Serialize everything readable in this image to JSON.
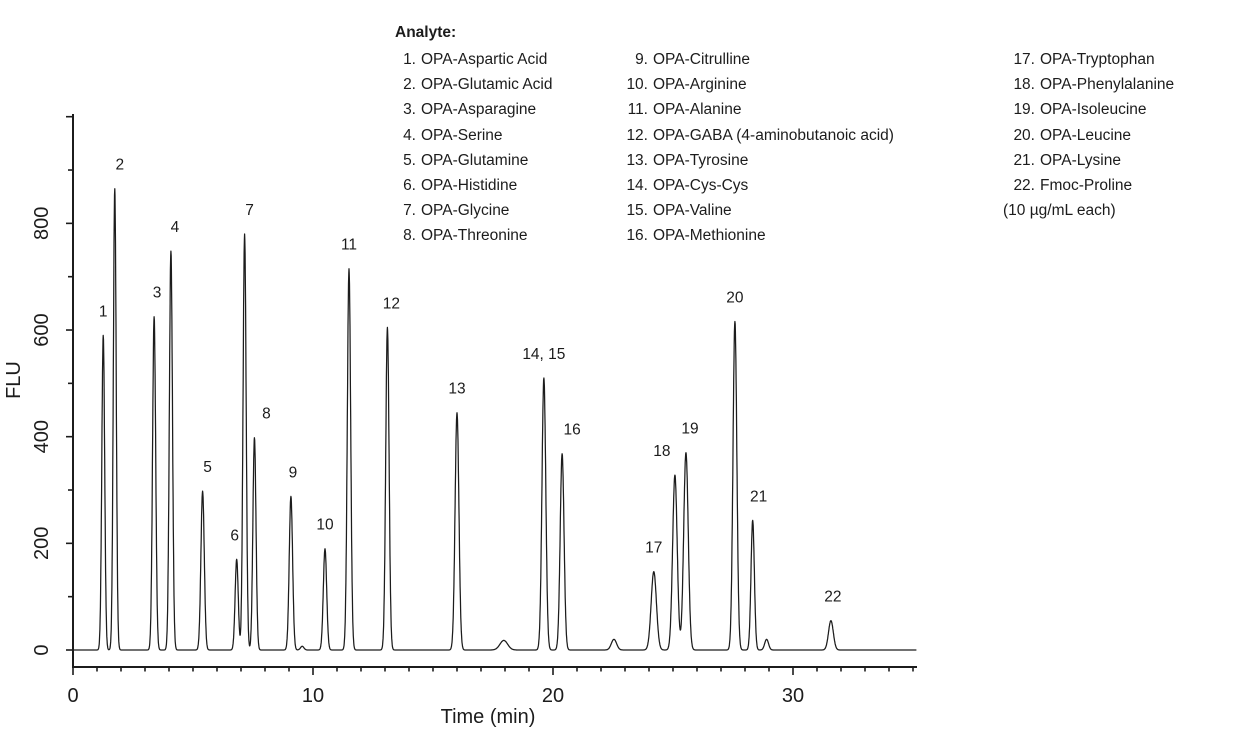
{
  "legend": {
    "header": "Analyte:",
    "note": "(10 µg/mL each)",
    "columns": [
      {
        "items": [
          {
            "num": "1.",
            "name": "OPA-Aspartic Acid"
          },
          {
            "num": "2.",
            "name": "OPA-Glutamic Acid"
          },
          {
            "num": "3.",
            "name": "OPA-Asparagine"
          },
          {
            "num": "4.",
            "name": "OPA-Serine"
          },
          {
            "num": "5.",
            "name": "OPA-Glutamine"
          },
          {
            "num": "6.",
            "name": "OPA-Histidine"
          },
          {
            "num": "7.",
            "name": "OPA-Glycine"
          },
          {
            "num": "8.",
            "name": "OPA-Threonine"
          }
        ]
      },
      {
        "items": [
          {
            "num": "9.",
            "name": "OPA-Citrulline"
          },
          {
            "num": "10.",
            "name": "OPA-Arginine"
          },
          {
            "num": "11.",
            "name": "OPA-Alanine"
          },
          {
            "num": "12.",
            "name": "OPA-GABA (4-aminobutanoic acid)"
          },
          {
            "num": "13.",
            "name": "OPA-Tyrosine"
          },
          {
            "num": "14.",
            "name": "OPA-Cys-Cys"
          },
          {
            "num": "15.",
            "name": "OPA-Valine"
          },
          {
            "num": "16.",
            "name": "OPA-Methionine"
          }
        ]
      },
      {
        "items": [
          {
            "num": "17.",
            "name": "OPA-Tryptophan"
          },
          {
            "num": "18.",
            "name": "OPA-Phenylalanine"
          },
          {
            "num": "19.",
            "name": "OPA-Isoleucine"
          },
          {
            "num": "20.",
            "name": "OPA-Leucine"
          },
          {
            "num": "21.",
            "name": "OPA-Lysine"
          },
          {
            "num": "22.",
            "name": "Fmoc-Proline"
          }
        ],
        "note_after": true
      }
    ]
  },
  "chart_data": {
    "type": "line",
    "title": "",
    "xlabel": "Time (min)",
    "ylabel": "FLU",
    "xlim": [
      0,
      35.2
    ],
    "ylim": [
      0,
      1000
    ],
    "x_major_tick_labels": [
      "0",
      "10",
      "20",
      "30"
    ],
    "x_major_tick_values": [
      0,
      10,
      20,
      30
    ],
    "x_minor_tick_step_min": 1,
    "y_major_tick_labels": [
      "0",
      "200",
      "400",
      "600",
      "800"
    ],
    "y_major_tick_values": [
      0,
      200,
      400,
      600,
      800
    ],
    "y_tick_step": 100,
    "y_top_tick": 1000,
    "grid": false,
    "legend_position": "top",
    "trace_color": "#1c1c1c",
    "baseline_flu": 0,
    "peaks": [
      {
        "label": "1",
        "analyte": "OPA-Aspartic Acid",
        "time_min": 1.26,
        "height_flu": 590,
        "sigma_min": 0.06,
        "label_dx": 0
      },
      {
        "label": "2",
        "analyte": "OPA-Glutamic Acid",
        "time_min": 1.74,
        "height_flu": 865,
        "sigma_min": 0.06,
        "label_dx": 5
      },
      {
        "label": "3",
        "analyte": "OPA-Asparagine",
        "time_min": 3.38,
        "height_flu": 625,
        "sigma_min": 0.065,
        "label_dx": 3
      },
      {
        "label": "4",
        "analyte": "OPA-Serine",
        "time_min": 4.08,
        "height_flu": 748,
        "sigma_min": 0.065,
        "label_dx": 4
      },
      {
        "label": "5",
        "analyte": "OPA-Glutamine",
        "time_min": 5.4,
        "height_flu": 298,
        "sigma_min": 0.07,
        "label_dx": 5
      },
      {
        "label": "6",
        "analyte": "OPA-Histidine",
        "time_min": 6.82,
        "height_flu": 170,
        "sigma_min": 0.065,
        "label_dx": -2
      },
      {
        "label": "7",
        "analyte": "OPA-Glycine",
        "time_min": 7.15,
        "height_flu": 780,
        "sigma_min": 0.065,
        "label_dx": 5
      },
      {
        "label": "8",
        "analyte": "OPA-Threonine",
        "time_min": 7.56,
        "height_flu": 398,
        "sigma_min": 0.065,
        "label_dx": 12
      },
      {
        "label": "9",
        "analyte": "OPA-Citrulline",
        "time_min": 9.08,
        "height_flu": 288,
        "sigma_min": 0.07,
        "label_dx": 2
      },
      {
        "label": "10",
        "analyte": "OPA-Arginine",
        "time_min": 10.5,
        "height_flu": 190,
        "sigma_min": 0.07,
        "label_dx": 0
      },
      {
        "label": "11",
        "analyte": "OPA-Alanine",
        "time_min": 11.5,
        "height_flu": 715,
        "sigma_min": 0.07,
        "label_dx": 0
      },
      {
        "label": "12",
        "analyte": "OPA-GABA (4-aminobutanoic acid)",
        "time_min": 13.1,
        "height_flu": 605,
        "sigma_min": 0.07,
        "label_dx": 4
      },
      {
        "label": "13",
        "analyte": "OPA-Tyrosine",
        "time_min": 16.0,
        "height_flu": 445,
        "sigma_min": 0.08,
        "label_dx": 0
      },
      {
        "label": "14, 15",
        "analyte": "OPA-Cys-Cys + OPA-Valine",
        "time_min": 19.62,
        "height_flu": 510,
        "sigma_min": 0.08,
        "label_dx": 0
      },
      {
        "label": "16",
        "analyte": "OPA-Methionine",
        "time_min": 20.38,
        "height_flu": 368,
        "sigma_min": 0.08,
        "label_dx": 10
      },
      {
        "label": "17",
        "analyte": "OPA-Tryptophan",
        "time_min": 24.2,
        "height_flu": 147,
        "sigma_min": 0.11,
        "label_dx": 0
      },
      {
        "label": "18",
        "analyte": "OPA-Phenylalanine",
        "time_min": 25.08,
        "height_flu": 328,
        "sigma_min": 0.095,
        "label_dx": -13
      },
      {
        "label": "19",
        "analyte": "OPA-Isoleucine",
        "time_min": 25.54,
        "height_flu": 370,
        "sigma_min": 0.095,
        "label_dx": 4
      },
      {
        "label": "20",
        "analyte": "OPA-Leucine",
        "time_min": 27.58,
        "height_flu": 616,
        "sigma_min": 0.08,
        "label_dx": 0
      },
      {
        "label": "21",
        "analyte": "OPA-Lysine",
        "time_min": 28.32,
        "height_flu": 243,
        "sigma_min": 0.07,
        "label_dx": 6
      },
      {
        "label": "22",
        "analyte": "Fmoc-Proline",
        "time_min": 31.58,
        "height_flu": 55,
        "sigma_min": 0.1,
        "label_dx": 2
      }
    ],
    "unlabeled_features": [
      {
        "time_min": 9.55,
        "height_flu": 7,
        "sigma_min": 0.07
      },
      {
        "time_min": 17.95,
        "height_flu": 18,
        "sigma_min": 0.16
      },
      {
        "time_min": 22.54,
        "height_flu": 20,
        "sigma_min": 0.11
      },
      {
        "time_min": 28.9,
        "height_flu": 20,
        "sigma_min": 0.08
      }
    ]
  }
}
